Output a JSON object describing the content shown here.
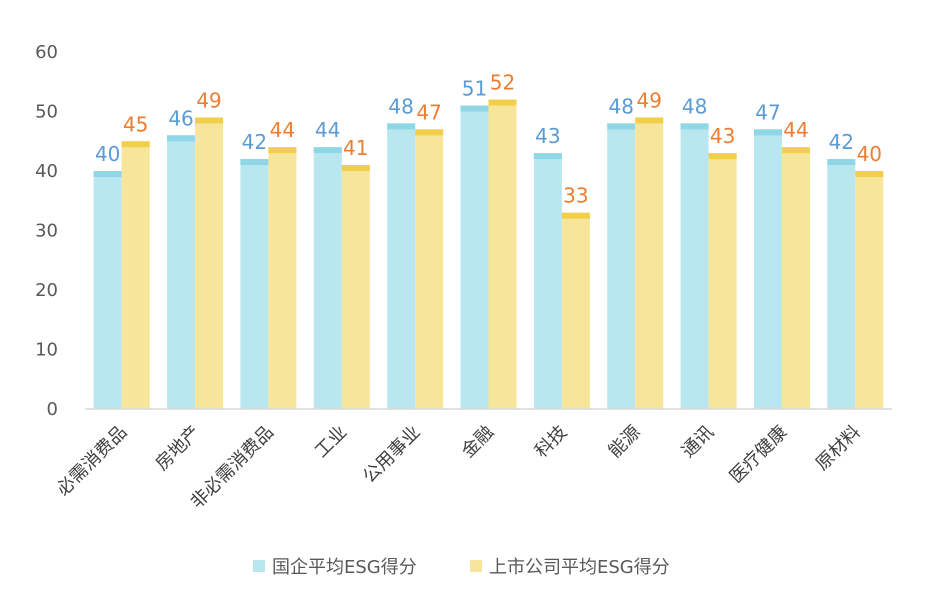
{
  "chart_data": {
    "type": "bar",
    "categories": [
      "必需消费品",
      "房地产",
      "非必需消费品",
      "工业",
      "公用事业",
      "金融",
      "科技",
      "能源",
      "通讯",
      "医疗健康",
      "原材料"
    ],
    "series": [
      {
        "name": "国企平均ESG得分",
        "values": [
          40,
          46,
          42,
          44,
          48,
          51,
          43,
          48,
          48,
          47,
          42
        ],
        "labels": [
          "40",
          "46",
          "42",
          "44",
          "48",
          "51",
          "43",
          "48",
          "48",
          "47",
          "42"
        ],
        "color": "#b9e7f0",
        "cap_color": "#8fd6e6",
        "label_color": "#5b9bd5"
      },
      {
        "name": "上市公司平均ESG得分",
        "values": [
          45,
          49,
          44,
          41,
          47,
          52,
          33,
          49,
          43,
          44,
          40
        ],
        "labels": [
          "45",
          "49",
          "44",
          "41",
          "47",
          "52",
          "33",
          "49",
          "43",
          "44",
          "40"
        ],
        "color": "#f7e59a",
        "cap_color": "#f1cf4a",
        "label_color": "#ed7d31"
      }
    ],
    "ylim": [
      0,
      60
    ],
    "yticks": [
      "0",
      "10",
      "20",
      "30",
      "40",
      "50",
      "60"
    ],
    "grid": false,
    "legend": "bottom",
    "data_labels": true
  }
}
